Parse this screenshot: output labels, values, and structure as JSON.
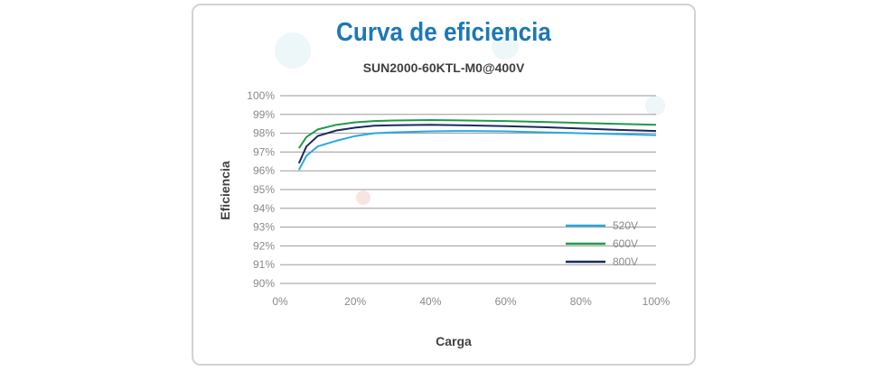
{
  "chart_data": {
    "type": "line",
    "title": "Curva de eficiencia",
    "subtitle": "SUN2000-60KTL-M0@400V",
    "xlabel": "Carga",
    "ylabel": "Eficiencia",
    "xlim": [
      0,
      100
    ],
    "ylim": [
      90,
      100
    ],
    "x_ticks": [
      "0%",
      "20%",
      "40%",
      "60%",
      "80%",
      "100%"
    ],
    "y_ticks": [
      "90%",
      "91%",
      "92%",
      "93%",
      "94%",
      "95%",
      "96%",
      "97%",
      "98%",
      "99%",
      "100%"
    ],
    "grid": true,
    "legend_position": "bottom-right",
    "series": [
      {
        "name": "520V",
        "color": "#29a8e0",
        "x": [
          5,
          7,
          10,
          15,
          20,
          25,
          30,
          40,
          50,
          60,
          70,
          80,
          90,
          100
        ],
        "y": [
          96.05,
          96.8,
          97.3,
          97.6,
          97.85,
          98.0,
          98.05,
          98.1,
          98.12,
          98.1,
          98.05,
          98.0,
          97.95,
          97.9
        ]
      },
      {
        "name": "600V",
        "color": "#1f9a4a",
        "x": [
          5,
          7,
          10,
          15,
          20,
          25,
          30,
          40,
          50,
          60,
          70,
          80,
          90,
          100
        ],
        "y": [
          97.2,
          97.8,
          98.2,
          98.45,
          98.58,
          98.65,
          98.68,
          98.7,
          98.68,
          98.65,
          98.6,
          98.55,
          98.5,
          98.45
        ]
      },
      {
        "name": "800V",
        "color": "#1b2a5c",
        "x": [
          5,
          7,
          10,
          15,
          20,
          25,
          30,
          40,
          50,
          60,
          70,
          80,
          90,
          100
        ],
        "y": [
          96.4,
          97.3,
          97.85,
          98.15,
          98.3,
          98.4,
          98.43,
          98.45,
          98.42,
          98.38,
          98.32,
          98.25,
          98.18,
          98.12
        ]
      }
    ]
  }
}
